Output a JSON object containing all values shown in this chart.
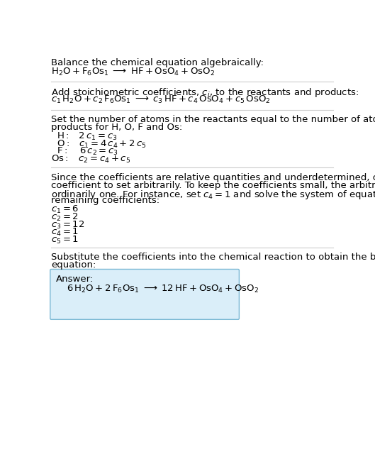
{
  "bg_color": "#ffffff",
  "text_color": "#000000",
  "divider_color": "#cccccc",
  "answer_box_color": "#daeef9",
  "answer_box_edge": "#7ab8d4",
  "font_size": 9.5,
  "eq_font_size": 10,
  "sections": {
    "s1_title": "Balance the chemical equation algebraically:",
    "s2_title_part1": "Add stoichiometric coefficients, ",
    "s2_title_part2": ", to the reactants and products:",
    "s3_title1": "Set the number of atoms in the reactants equal to the number of atoms in the",
    "s3_title2": "products for H, O, F and Os:",
    "s4_text": [
      "Since the coefficients are relative quantities and underdetermined, choose a",
      "coefficient to set arbitrarily. To keep the coefficients small, the arbitrary value is",
      "ordinarily one. For instance, set ",
      " and solve the system of equations for the",
      "remaining coefficients:"
    ],
    "s5_text1": "Substitute the coefficients into the chemical reaction to obtain the balanced",
    "s5_text2": "equation:",
    "answer_label": "Answer:"
  }
}
